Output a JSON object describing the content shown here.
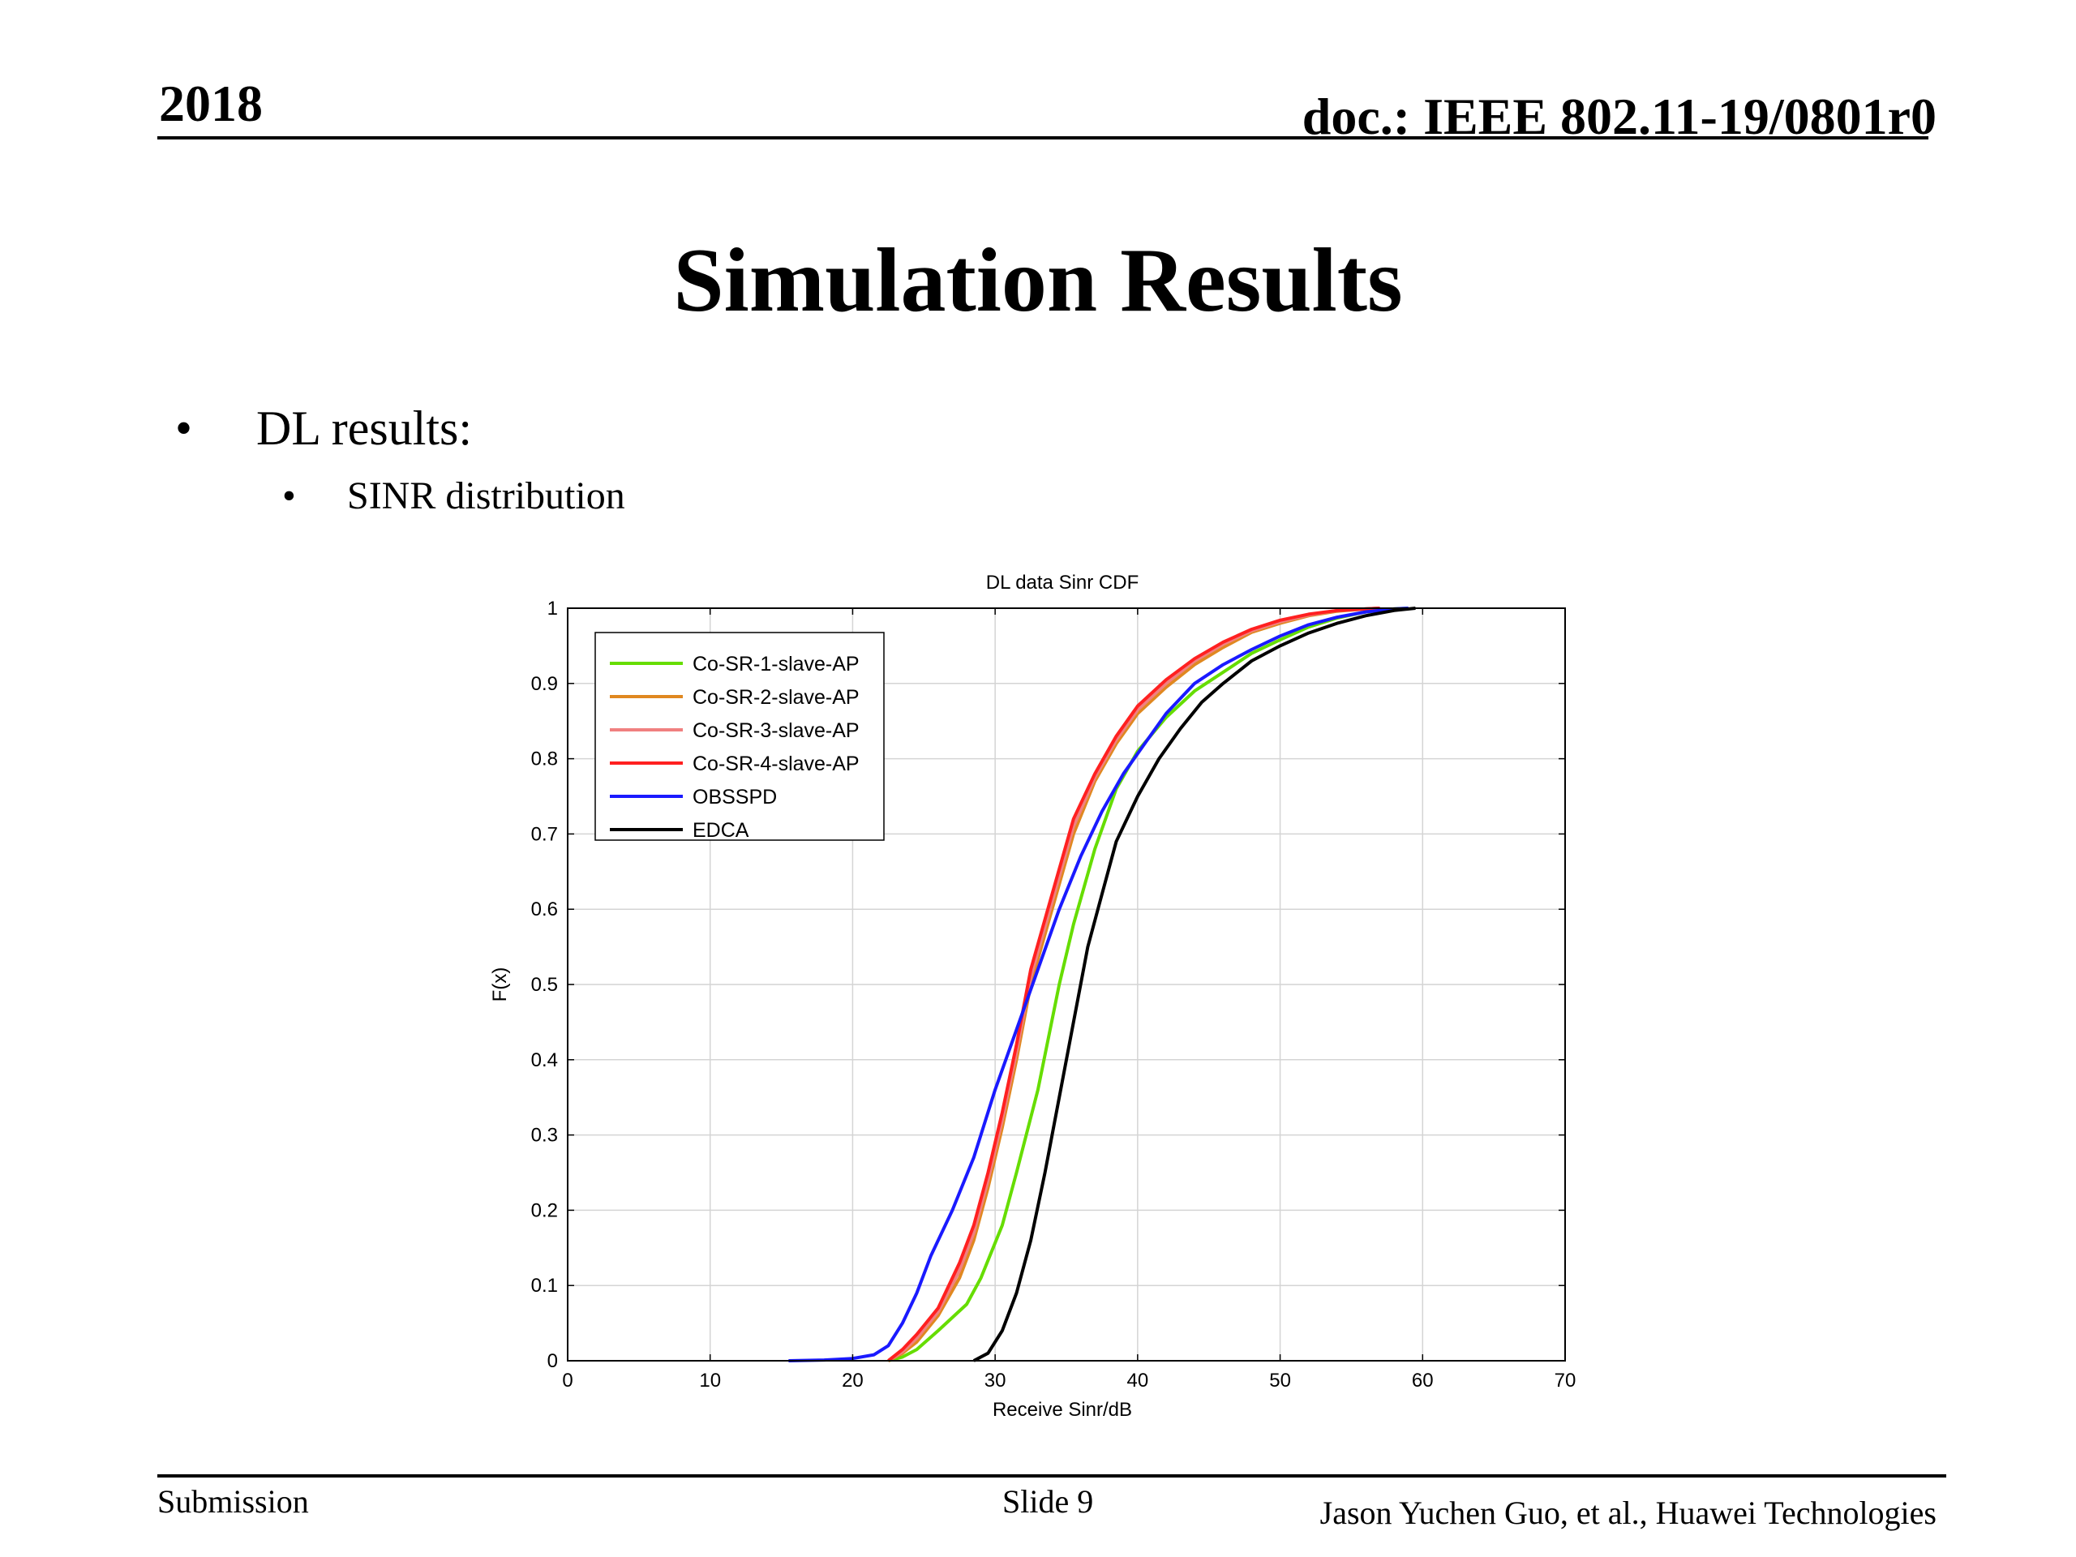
{
  "header": {
    "year": "2018",
    "doc_id": "doc.: IEEE 802.11-19/0801r0"
  },
  "slide": {
    "title": "Simulation Results",
    "bullets": [
      {
        "level": 1,
        "text": "DL results:"
      },
      {
        "level": 2,
        "text": "SINR distribution"
      }
    ]
  },
  "footer": {
    "left": "Submission",
    "center": "Slide 9",
    "right": "Jason Yuchen Guo, et al., Huawei Technologies"
  },
  "chart_data": {
    "type": "line",
    "title": "DL data Sinr CDF",
    "xlabel": "Receive Sinr/dB",
    "ylabel": "F(x)",
    "xlim": [
      0,
      70
    ],
    "ylim": [
      0,
      1
    ],
    "xticks": [
      "0",
      "10",
      "20",
      "30",
      "40",
      "50",
      "60",
      "70"
    ],
    "yticks": [
      "0",
      "0.1",
      "0.2",
      "0.3",
      "0.4",
      "0.5",
      "0.6",
      "0.7",
      "0.8",
      "0.9",
      "1"
    ],
    "grid": true,
    "legend_position": "top-left",
    "series": [
      {
        "name": "Co-SR-1-slave-AP",
        "color": "#66dd00",
        "x": [
          22.5,
          23.5,
          24.5,
          26,
          28,
          29,
          30.5,
          31.5,
          33,
          34.5,
          35.5,
          37,
          38.5,
          40,
          42,
          44,
          46,
          48,
          50,
          52,
          54,
          56,
          58,
          59
        ],
        "y": [
          0,
          0.005,
          0.015,
          0.04,
          0.075,
          0.11,
          0.18,
          0.25,
          0.36,
          0.5,
          0.58,
          0.68,
          0.76,
          0.81,
          0.855,
          0.89,
          0.915,
          0.94,
          0.958,
          0.975,
          0.987,
          0.995,
          0.999,
          1
        ]
      },
      {
        "name": "Co-SR-2-slave-AP",
        "color": "#e08820",
        "x": [
          22.5,
          23.5,
          24.5,
          26,
          27.5,
          28.5,
          29.5,
          30.5,
          31.5,
          32.5,
          34,
          35.5,
          37,
          38.5,
          40,
          42,
          44,
          46,
          48,
          50,
          52,
          54,
          56,
          57
        ],
        "y": [
          0,
          0.01,
          0.025,
          0.06,
          0.11,
          0.16,
          0.23,
          0.31,
          0.4,
          0.5,
          0.6,
          0.7,
          0.77,
          0.82,
          0.86,
          0.895,
          0.925,
          0.948,
          0.968,
          0.98,
          0.99,
          0.996,
          0.999,
          1
        ]
      },
      {
        "name": "Co-SR-3-slave-AP",
        "color": "#f08080",
        "x": [
          22.5,
          23.5,
          24.5,
          26,
          27.5,
          28.5,
          29.5,
          30.5,
          31.5,
          32.5,
          34,
          35.5,
          37,
          38.5,
          40,
          42,
          44,
          46,
          48,
          50,
          52,
          54,
          56,
          57
        ],
        "y": [
          0,
          0.012,
          0.03,
          0.065,
          0.12,
          0.17,
          0.24,
          0.32,
          0.41,
          0.51,
          0.61,
          0.71,
          0.775,
          0.825,
          0.865,
          0.9,
          0.93,
          0.952,
          0.97,
          0.982,
          0.991,
          0.997,
          0.999,
          1
        ]
      },
      {
        "name": "Co-SR-4-slave-AP",
        "color": "#ff2020",
        "x": [
          22.5,
          23.5,
          24.5,
          26,
          27.5,
          28.5,
          29.5,
          30.5,
          31.5,
          32.5,
          34,
          35.5,
          37,
          38.5,
          40,
          42,
          44,
          46,
          48,
          50,
          52,
          54,
          56,
          57
        ],
        "y": [
          0,
          0.015,
          0.035,
          0.07,
          0.13,
          0.18,
          0.25,
          0.33,
          0.42,
          0.52,
          0.62,
          0.72,
          0.78,
          0.83,
          0.87,
          0.905,
          0.933,
          0.955,
          0.972,
          0.984,
          0.992,
          0.997,
          0.999,
          1
        ]
      },
      {
        "name": "OBSSPD",
        "color": "#1a1aff",
        "x": [
          15.5,
          18,
          20,
          21.5,
          22.5,
          23.5,
          24.5,
          25.5,
          27,
          28.5,
          30,
          31.5,
          33,
          34.5,
          36,
          37.5,
          39,
          40.5,
          42,
          44,
          46,
          48,
          50,
          52,
          54,
          56,
          58,
          59
        ],
        "y": [
          0,
          0.001,
          0.003,
          0.008,
          0.02,
          0.05,
          0.09,
          0.14,
          0.2,
          0.27,
          0.36,
          0.44,
          0.52,
          0.6,
          0.67,
          0.73,
          0.78,
          0.82,
          0.86,
          0.9,
          0.925,
          0.945,
          0.963,
          0.978,
          0.988,
          0.995,
          0.999,
          1
        ]
      },
      {
        "name": "EDCA",
        "color": "#000000",
        "x": [
          28.5,
          29.5,
          30.5,
          31.5,
          32.5,
          33.5,
          34.5,
          35.5,
          36.5,
          37.5,
          38.5,
          40,
          41.5,
          43,
          44.5,
          46,
          48,
          50,
          52,
          54,
          56,
          58,
          59.5
        ],
        "y": [
          0,
          0.01,
          0.04,
          0.09,
          0.16,
          0.25,
          0.35,
          0.45,
          0.55,
          0.62,
          0.69,
          0.75,
          0.8,
          0.84,
          0.875,
          0.9,
          0.93,
          0.95,
          0.967,
          0.98,
          0.99,
          0.997,
          1
        ]
      }
    ]
  }
}
